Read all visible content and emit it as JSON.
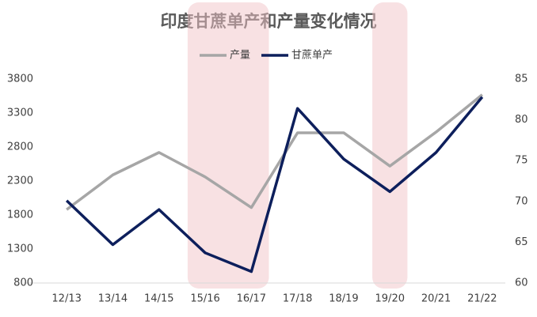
{
  "chart_data": {
    "type": "line",
    "title": "印度甘蔗单产和产量变化情况",
    "categories": [
      "12/13",
      "13/14",
      "14/15",
      "15/16",
      "16/17",
      "17/18",
      "18/19",
      "19/20",
      "20/21",
      "21/22"
    ],
    "series": [
      {
        "name": "产量",
        "color": "#a6a6a6",
        "values": [
          1880,
          2390,
          2720,
          2360,
          1910,
          3010,
          3010,
          2520,
          3020,
          3570
        ]
      },
      {
        "name": "甘蔗单产",
        "color": "#0d1f5c",
        "axis": "y2",
        "values": [
          70.1,
          64.7,
          69.0,
          63.7,
          61.4,
          81.4,
          75.2,
          71.2,
          76.0,
          82.8
        ]
      }
    ],
    "ylim": [
      800,
      3800
    ],
    "yticks": [
      800,
      1300,
      1800,
      2300,
      2800,
      3300,
      3800
    ],
    "y2lim": [
      60,
      85
    ],
    "y2ticks": [
      60,
      65,
      70,
      75,
      80,
      85
    ],
    "grid": false,
    "legend": "top"
  }
}
